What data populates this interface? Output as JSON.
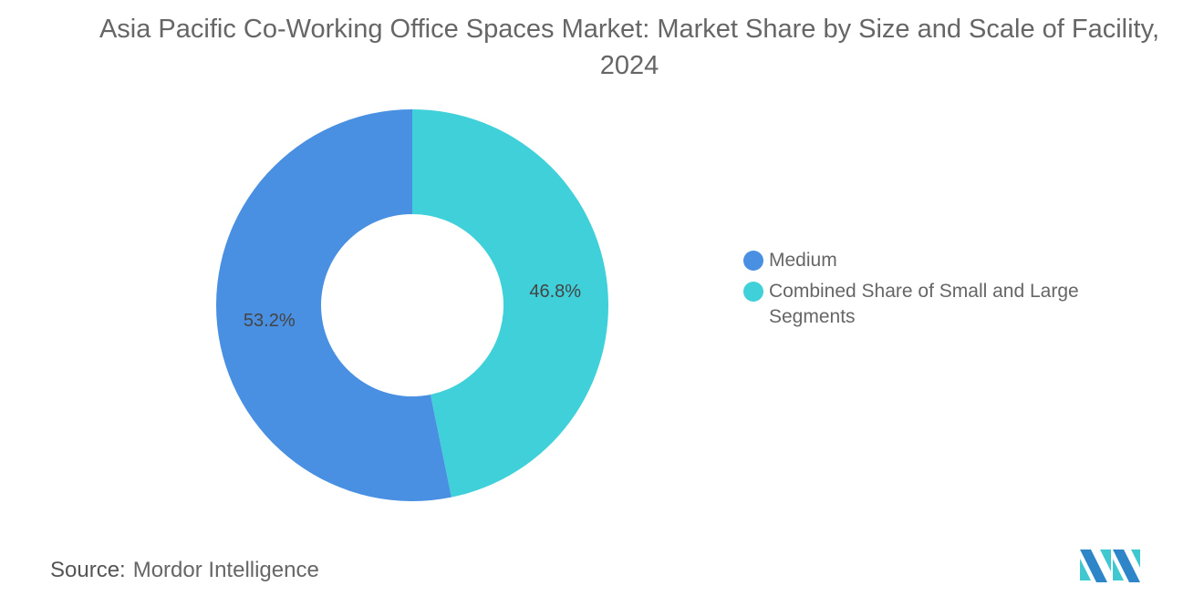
{
  "chart_data": {
    "type": "pie",
    "donut": true,
    "title": "Asia Pacific Co-Working Office Spaces Market: Market Share by Size and Scale of Facility, 2024",
    "slices": [
      {
        "label": "Combined Share of Small and Large Segments",
        "value": 46.8,
        "display": "46.8%",
        "color": "#40D0DA"
      },
      {
        "label": "Medium",
        "value": 53.2,
        "display": "53.2%",
        "color": "#4A90E2"
      }
    ],
    "legend": {
      "placement": "right",
      "items": [
        {
          "label": "Medium",
          "color": "#4A90E2"
        },
        {
          "label": "Combined Share of Small and Large Segments",
          "color": "#40D0DA"
        }
      ]
    }
  },
  "source": {
    "label": "Source:",
    "value": "Mordor Intelligence"
  },
  "logo": {
    "text": "Mordor Intelligence",
    "colors": [
      "#2E86C8",
      "#40C8D0"
    ]
  }
}
